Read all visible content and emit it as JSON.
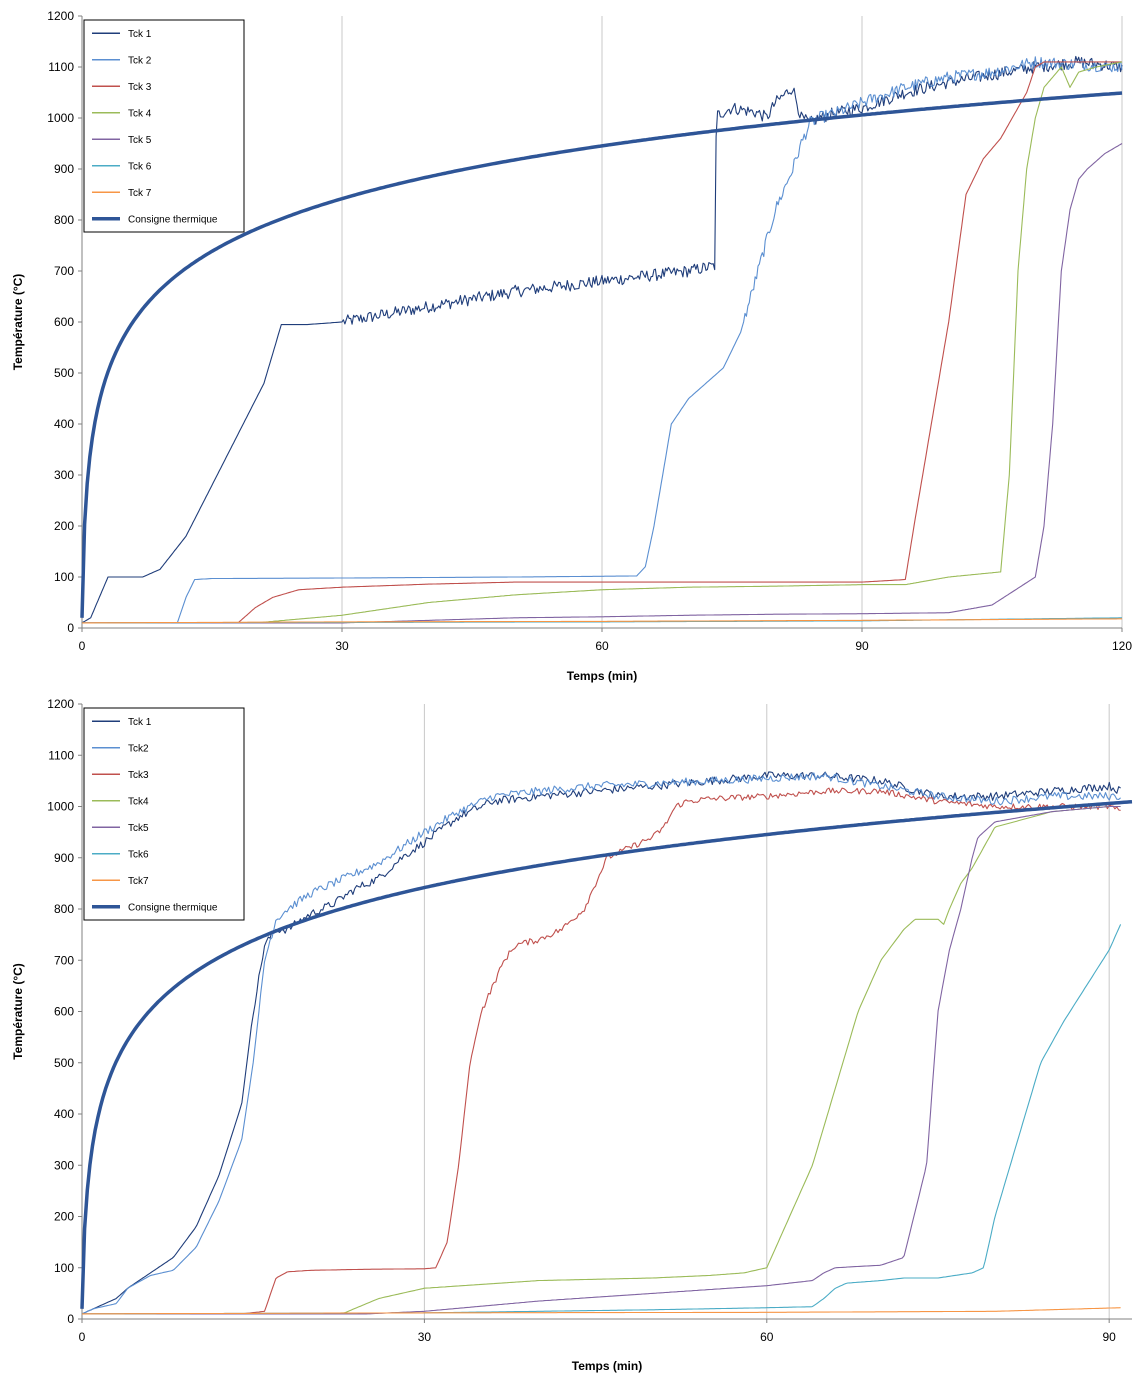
{
  "chart_data": [
    {
      "type": "line",
      "title": "",
      "xlabel": "Temps (min)",
      "ylabel": "Température (°C)",
      "xlim": [
        0,
        120
      ],
      "ylim": [
        0,
        1200
      ],
      "xticks": [
        0,
        30,
        60,
        90,
        120
      ],
      "yticks": [
        0,
        100,
        200,
        300,
        400,
        500,
        600,
        700,
        800,
        900,
        1000,
        1100,
        1200
      ],
      "grid": "vertical",
      "legend_position": "top-left",
      "series": [
        {
          "name": "Tck 1",
          "color": "#1f3d7a",
          "noise": 12,
          "x": [
            0,
            1,
            3,
            5,
            7,
            9,
            12,
            15,
            18,
            21,
            23,
            24,
            26,
            30,
            40,
            50,
            60,
            70,
            73,
            73.2,
            75,
            78,
            79,
            80,
            82,
            83,
            84,
            85,
            87,
            90,
            95,
            100,
            105,
            110,
            115,
            120
          ],
          "y": [
            10,
            20,
            100,
            100,
            100,
            115,
            180,
            280,
            380,
            480,
            595,
            595,
            595,
            600,
            630,
            660,
            680,
            700,
            710,
            1005,
            1020,
            1010,
            1000,
            1030,
            1060,
            1000,
            990,
            1000,
            1010,
            1020,
            1050,
            1070,
            1085,
            1100,
            1110,
            1100
          ]
        },
        {
          "name": "Tck 2",
          "color": "#5b8fd1",
          "noise": 12,
          "x": [
            0,
            11,
            12,
            13,
            15,
            30,
            50,
            64,
            65,
            66,
            68,
            70,
            72,
            74,
            76,
            78,
            80,
            82,
            83,
            84,
            85,
            87,
            90,
            95,
            100,
            105,
            110,
            115,
            120
          ],
          "y": [
            10,
            10,
            60,
            95,
            97,
            98,
            100,
            102,
            120,
            200,
            400,
            450,
            480,
            510,
            580,
            700,
            820,
            900,
            950,
            990,
            1000,
            1010,
            1030,
            1060,
            1080,
            1090,
            1110,
            1105,
            1100
          ]
        },
        {
          "name": "Tck 3",
          "color": "#c0504d",
          "noise": 0,
          "x": [
            0,
            18,
            20,
            22,
            25,
            30,
            40,
            50,
            60,
            70,
            80,
            90,
            95,
            96,
            98,
            100,
            102,
            104,
            106,
            108,
            109,
            110,
            111,
            115,
            120
          ],
          "y": [
            10,
            10,
            40,
            60,
            75,
            80,
            86,
            90,
            90,
            90,
            90,
            90,
            95,
            200,
            400,
            600,
            850,
            920,
            960,
            1020,
            1050,
            1100,
            1110,
            1110,
            1110
          ]
        },
        {
          "name": "Tck 4",
          "color": "#9bbb59",
          "noise": 0,
          "x": [
            0,
            20,
            30,
            40,
            50,
            60,
            70,
            80,
            90,
            95,
            100,
            106,
            107,
            108,
            109,
            110,
            111,
            112,
            113,
            114,
            115,
            117,
            120
          ],
          "y": [
            10,
            10,
            25,
            50,
            65,
            75,
            80,
            82,
            85,
            85,
            100,
            110,
            300,
            700,
            900,
            1000,
            1060,
            1080,
            1100,
            1060,
            1090,
            1100,
            1110
          ]
        },
        {
          "name": "Tck 5",
          "color": "#8064a2",
          "noise": 0,
          "x": [
            0,
            30,
            40,
            50,
            60,
            70,
            80,
            90,
            100,
            105,
            110,
            111,
            112,
            113,
            114,
            115,
            116,
            118,
            120
          ],
          "y": [
            10,
            10,
            15,
            20,
            22,
            25,
            27,
            28,
            30,
            45,
            100,
            200,
            400,
            700,
            820,
            880,
            900,
            930,
            950
          ]
        },
        {
          "name": "Tck 6",
          "color": "#4bacc6",
          "noise": 0,
          "x": [
            0,
            60,
            90,
            120
          ],
          "y": [
            10,
            12,
            14,
            20
          ]
        },
        {
          "name": "Tck 7",
          "color": "#f79646",
          "noise": 0,
          "x": [
            0,
            30,
            60,
            90,
            120
          ],
          "y": [
            10,
            12,
            13,
            15,
            18
          ]
        },
        {
          "name": "Consigne thermique",
          "color": "#2e5597",
          "width": 3.5,
          "noise": 0,
          "formula": "iso834",
          "x": [],
          "y": []
        }
      ]
    },
    {
      "type": "line",
      "title": "",
      "xlabel": "Temps (min)",
      "ylabel": "Température (°C)",
      "xlim": [
        0,
        92
      ],
      "ylim": [
        0,
        1200
      ],
      "xticks": [
        0,
        30,
        60,
        90
      ],
      "yticks": [
        0,
        100,
        200,
        300,
        400,
        500,
        600,
        700,
        800,
        900,
        1000,
        1100,
        1200
      ],
      "grid": "vertical",
      "legend_position": "top-left",
      "series": [
        {
          "name": "Tck 1",
          "color": "#1f3d7a",
          "noise": 8,
          "x": [
            0,
            1,
            2,
            3,
            4,
            6,
            8,
            10,
            12,
            13,
            14,
            15,
            16,
            17,
            18,
            20,
            22,
            24,
            26,
            28,
            30,
            33,
            36,
            40,
            45,
            50,
            55,
            60,
            65,
            70,
            75,
            80,
            85,
            90,
            91
          ],
          "y": [
            10,
            20,
            30,
            40,
            60,
            90,
            120,
            180,
            280,
            350,
            420,
            600,
            730,
            760,
            760,
            790,
            810,
            840,
            860,
            900,
            930,
            980,
            1010,
            1020,
            1030,
            1040,
            1050,
            1060,
            1060,
            1050,
            1020,
            1020,
            1030,
            1040,
            1030
          ]
        },
        {
          "name": "Tck2",
          "color": "#5b8fd1",
          "noise": 8,
          "x": [
            0,
            1,
            2,
            3,
            4,
            6,
            8,
            10,
            12,
            14,
            15,
            16,
            17,
            18,
            20,
            22,
            24,
            26,
            28,
            30,
            33,
            36,
            40,
            45,
            50,
            55,
            60,
            65,
            70,
            75,
            80,
            85,
            90,
            91
          ],
          "y": [
            10,
            20,
            25,
            30,
            60,
            85,
            95,
            140,
            230,
            350,
            500,
            700,
            780,
            800,
            830,
            850,
            870,
            890,
            920,
            950,
            990,
            1020,
            1030,
            1040,
            1045,
            1050,
            1055,
            1060,
            1040,
            1020,
            1010,
            1020,
            1020,
            1020
          ]
        },
        {
          "name": "Tck3",
          "color": "#c0504d",
          "noise": 6,
          "x": [
            0,
            14,
            16,
            17,
            18,
            20,
            25,
            30,
            31,
            32,
            33,
            34,
            35,
            36,
            37,
            38,
            40,
            42,
            44,
            45,
            46,
            48,
            50,
            51,
            52,
            53,
            55,
            60,
            65,
            70,
            75,
            80,
            85,
            90,
            91
          ],
          "y": [
            10,
            10,
            15,
            80,
            92,
            95,
            97,
            98,
            100,
            150,
            300,
            500,
            600,
            650,
            700,
            730,
            740,
            760,
            800,
            850,
            900,
            920,
            940,
            960,
            1000,
            1010,
            1015,
            1020,
            1030,
            1030,
            1010,
            1000,
            1000,
            1000,
            990
          ]
        },
        {
          "name": "Tck4",
          "color": "#9bbb59",
          "noise": 0,
          "x": [
            0,
            20,
            23,
            26,
            30,
            40,
            50,
            55,
            58,
            60,
            62,
            64,
            66,
            68,
            70,
            72,
            73,
            74,
            75,
            75.5,
            76,
            77,
            78,
            80,
            85,
            90,
            91
          ],
          "y": [
            10,
            10,
            12,
            40,
            60,
            75,
            80,
            85,
            90,
            100,
            200,
            300,
            450,
            600,
            700,
            760,
            780,
            780,
            780,
            770,
            800,
            850,
            880,
            960,
            990,
            1000,
            1000
          ]
        },
        {
          "name": "Tck5",
          "color": "#8064a2",
          "noise": 0,
          "x": [
            0,
            25,
            30,
            40,
            50,
            60,
            64,
            65,
            66,
            70,
            72,
            74,
            75,
            76,
            77,
            78,
            78.5,
            79,
            80,
            85,
            90,
            91
          ],
          "y": [
            10,
            10,
            15,
            35,
            50,
            65,
            75,
            90,
            100,
            105,
            120,
            300,
            600,
            720,
            800,
            900,
            940,
            950,
            970,
            990,
            1000,
            1000
          ]
        },
        {
          "name": "Tck6",
          "color": "#4bacc6",
          "noise": 0,
          "x": [
            0,
            30,
            40,
            50,
            60,
            64,
            65,
            66,
            67,
            70,
            72,
            75,
            78,
            79,
            80,
            82,
            84,
            86,
            88,
            90,
            91
          ],
          "y": [
            10,
            12,
            15,
            18,
            22,
            24,
            40,
            60,
            70,
            75,
            80,
            80,
            90,
            100,
            200,
            350,
            500,
            580,
            650,
            720,
            770
          ]
        },
        {
          "name": "Tck7",
          "color": "#f79646",
          "noise": 0,
          "x": [
            0,
            30,
            60,
            80,
            91
          ],
          "y": [
            10,
            12,
            13,
            15,
            22
          ]
        },
        {
          "name": "Consigne thermique",
          "color": "#2e5597",
          "width": 3.5,
          "noise": 0,
          "formula": "iso834",
          "x": [],
          "y": []
        }
      ]
    }
  ]
}
